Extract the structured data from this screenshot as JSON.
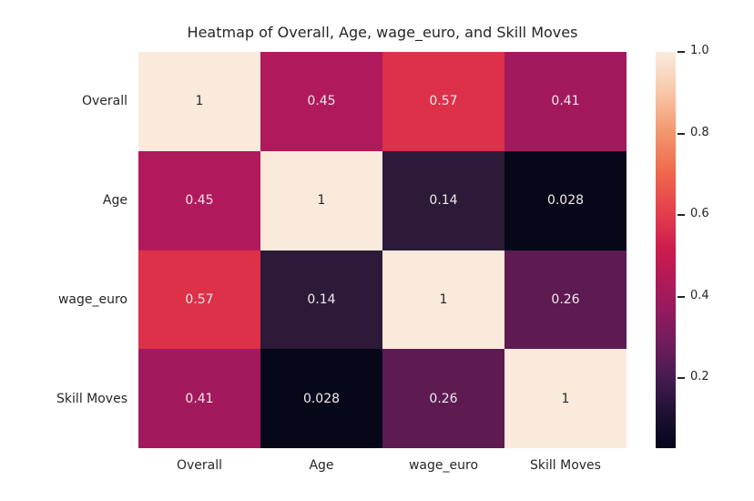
{
  "title": "Heatmap of Overall, Age, wage_euro, and Skill Moves",
  "chart_data": {
    "type": "heatmap",
    "categories": [
      "Overall",
      "Age",
      "wage_euro",
      "Skill Moves"
    ],
    "matrix": [
      [
        1,
        0.45,
        0.57,
        0.41
      ],
      [
        0.45,
        1,
        0.14,
        0.028
      ],
      [
        0.57,
        0.14,
        1,
        0.26
      ],
      [
        0.41,
        0.028,
        0.26,
        1
      ]
    ],
    "cell_labels": [
      [
        "1",
        "0.45",
        "0.57",
        "0.41"
      ],
      [
        "0.45",
        "1",
        "0.14",
        "0.028"
      ],
      [
        "0.57",
        "0.14",
        "1",
        "0.26"
      ],
      [
        "0.41",
        "0.028",
        "0.26",
        "1"
      ]
    ],
    "cell_colors": [
      [
        "#F9EADB",
        "#B01A5C",
        "#DC3148",
        "#A21A5D"
      ],
      [
        "#B01A5C",
        "#F9EADB",
        "#2C1A38",
        "#060819"
      ],
      [
        "#DC3148",
        "#2C1A38",
        "#F9EADB",
        "#5D1B52"
      ],
      [
        "#A21A5D",
        "#060819",
        "#5D1B52",
        "#F9EADB"
      ]
    ],
    "colormap": "rocket",
    "vmin": 0.028,
    "vmax": 1.0,
    "legend_position": "right",
    "grid": false,
    "colorbar_ticks": [
      {
        "label": "1.0",
        "value": 1.0
      },
      {
        "label": "0.8",
        "value": 0.8
      },
      {
        "label": "0.6",
        "value": 0.6
      },
      {
        "label": "0.4",
        "value": 0.4
      },
      {
        "label": "0.2",
        "value": 0.2
      }
    ],
    "colorbar_gradient": [
      {
        "pos": 0,
        "color": "#FAEBDD"
      },
      {
        "pos": 10,
        "color": "#F8C8A9"
      },
      {
        "pos": 20,
        "color": "#F2986F"
      },
      {
        "pos": 30,
        "color": "#EF6A4C"
      },
      {
        "pos": 41,
        "color": "#E23D4D"
      },
      {
        "pos": 50,
        "color": "#CB1B4F"
      },
      {
        "pos": 62,
        "color": "#A11A5B"
      },
      {
        "pos": 72,
        "color": "#771C5D"
      },
      {
        "pos": 82,
        "color": "#471B51"
      },
      {
        "pos": 91,
        "color": "#1F1133"
      },
      {
        "pos": 100,
        "color": "#04051C"
      }
    ],
    "colors": {
      "annotation_light": "#EFE9ED",
      "annotation_dark": "#262626",
      "axis_text": "#262626",
      "background": "#FFFFFF"
    },
    "annotation_dark_threshold": 0.75
  }
}
